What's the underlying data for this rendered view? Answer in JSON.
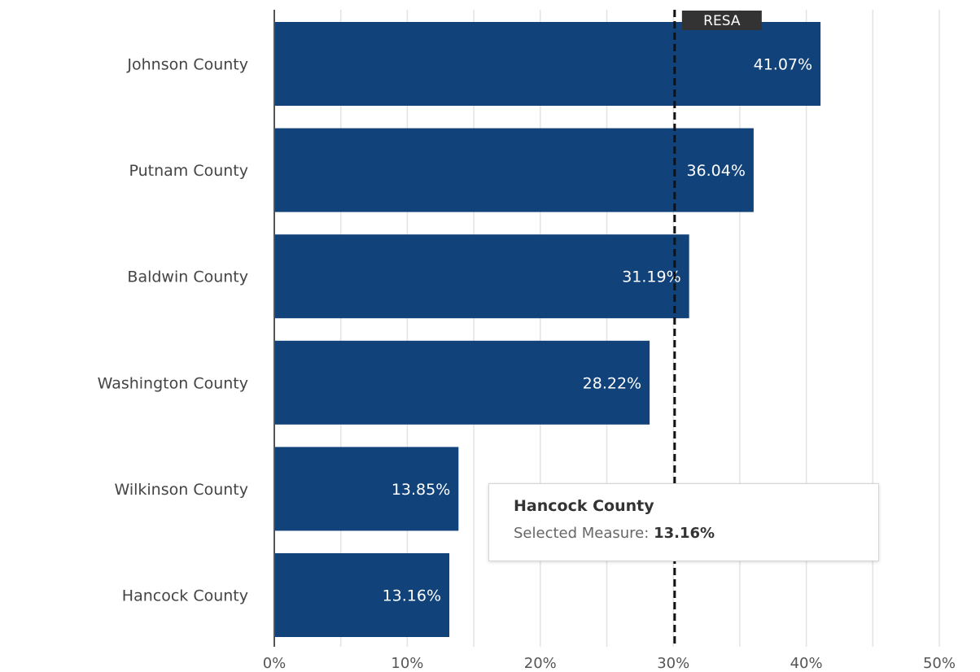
{
  "chart_data": {
    "type": "bar",
    "orientation": "horizontal",
    "categories": [
      "Johnson County",
      "Putnam County",
      "Baldwin County",
      "Washington County",
      "Wilkinson County",
      "Hancock County"
    ],
    "values": [
      41.07,
      36.04,
      31.19,
      28.22,
      13.85,
      13.16
    ],
    "value_labels": [
      "41.07%",
      "36.04%",
      "31.19%",
      "28.22%",
      "13.85%",
      "13.16%"
    ],
    "xlim": [
      0,
      50
    ],
    "x_ticks": [
      0,
      10,
      20,
      30,
      40,
      50
    ],
    "x_tick_labels": [
      "0%",
      "10%",
      "20%",
      "30%",
      "40%",
      "50%"
    ],
    "reference_line": {
      "label": "RESA",
      "value": 30.1,
      "style": "dashed"
    },
    "grid": "vertical",
    "bar_color": "#12427a",
    "reference_color": "#111111"
  },
  "tooltip": {
    "title": "Hancock County",
    "measure_label": "Selected Measure:",
    "measure_value": "13.16%"
  }
}
